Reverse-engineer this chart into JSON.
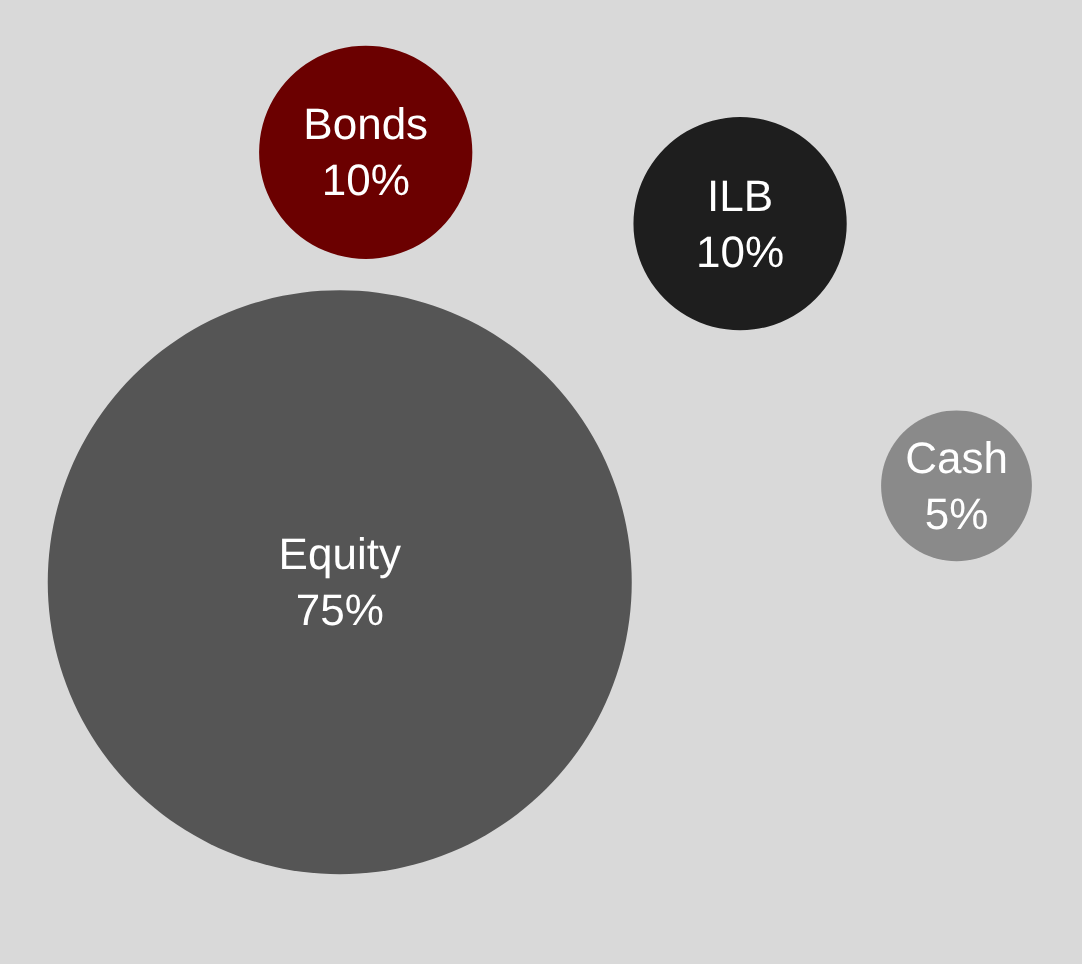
{
  "chart_data": {
    "type": "other",
    "categories": [
      "Bonds",
      "ILB",
      "Cash",
      "Equity"
    ],
    "values": [
      10,
      10,
      5,
      75
    ],
    "value_labels": [
      "10%",
      "10%",
      "5%",
      "75%"
    ],
    "colors": [
      "#6b0000",
      "#1e1e1e",
      "#8a8a8a",
      "#555555"
    ]
  }
}
